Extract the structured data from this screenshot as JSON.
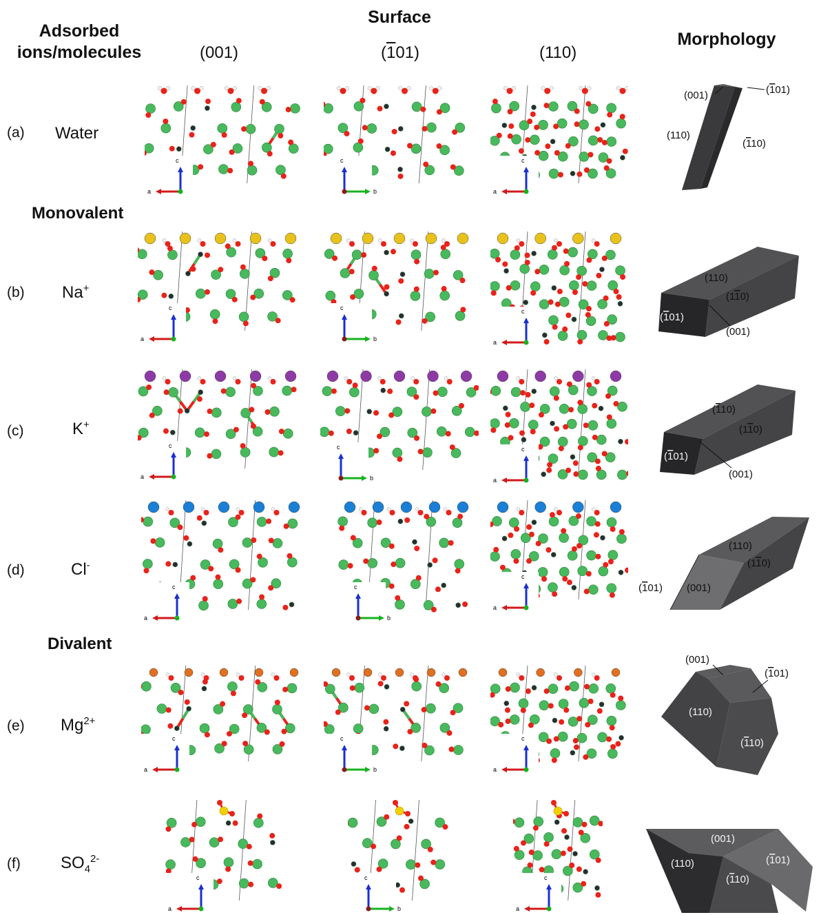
{
  "headers": {
    "surface": "Surface",
    "adsorbed_line1": "Adsorbed",
    "adsorbed_line2": "ions/molecules",
    "morphology": "Morphology"
  },
  "surfaces": [
    {
      "pre": "(00",
      "bar": "",
      "post": "1)"
    },
    {
      "pre": "(",
      "bar": "1",
      "post": "01)"
    },
    {
      "pre": "(110)",
      "bar": "",
      "post": ""
    }
  ],
  "sections": {
    "monovalent": "Monovalent",
    "divalent": "Divalent"
  },
  "rows": [
    {
      "label": "(a)",
      "ion": "Water",
      "sup": "",
      "sub": "",
      "adatom_color": "",
      "facets": [
        "(001)",
        "(-101)",
        "(110)",
        "(-110)"
      ]
    },
    {
      "label": "(b)",
      "ion": "Na",
      "sup": "+",
      "sub": "",
      "adatom_color": "#e8c21a",
      "facets": [
        "(110)",
        "(1-10)",
        "(-101)",
        "(001)"
      ]
    },
    {
      "label": "(c)",
      "ion": "K",
      "sup": "+",
      "sub": "",
      "adatom_color": "#8e3aa6",
      "facets": [
        "(110)",
        "(1-10)",
        "(-101)",
        "(001)"
      ]
    },
    {
      "label": "(d)",
      "ion": "Cl",
      "sup": "-",
      "sub": "",
      "adatom_color": "#1a7fd6",
      "facets": [
        "(110)",
        "(1-10)",
        "(001)",
        "(-101)"
      ]
    },
    {
      "label": "(e)",
      "ion": "Mg",
      "sup": "2+",
      "sub": "",
      "adatom_color": "#e07020",
      "facets": [
        "(001)",
        "(-101)",
        "(110)",
        "(-110)"
      ]
    },
    {
      "label": "(f)",
      "ion": "SO",
      "sup": "2-",
      "sub": "4",
      "adatom_color": "#f0d000",
      "facets": [
        "(001)",
        "(110)",
        "(-101)",
        "(-110)"
      ]
    }
  ],
  "axis_labels": {
    "a": "a",
    "b": "b",
    "c": "c"
  },
  "colors": {
    "oxygen": "#e8231a",
    "calcium": "#48b95c",
    "carbon": "#2b2b34",
    "hydrogen": "#f4f4f4"
  }
}
